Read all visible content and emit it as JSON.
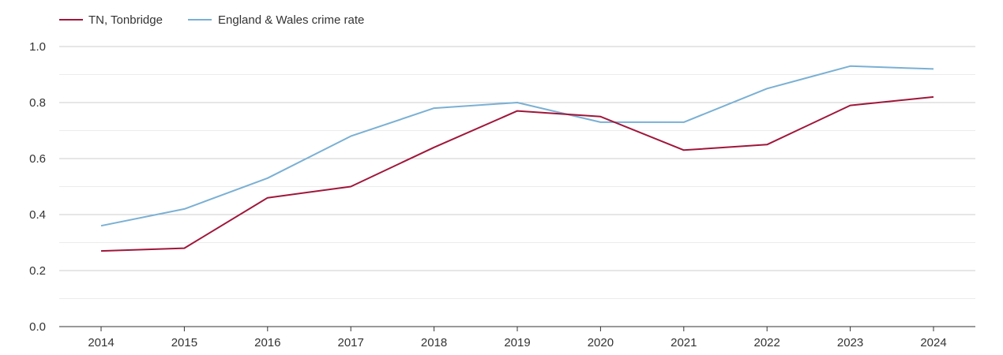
{
  "chart_data": {
    "type": "line",
    "title": "",
    "xlabel": "",
    "ylabel": "",
    "categories": [
      "2014",
      "2015",
      "2016",
      "2017",
      "2018",
      "2019",
      "2020",
      "2021",
      "2022",
      "2023",
      "2024"
    ],
    "ylim": [
      0,
      1.0
    ],
    "yticks": [
      "0.0",
      "0.2",
      "0.4",
      "0.6",
      "0.8",
      "1.0"
    ],
    "grid": true,
    "legend_position": "top-left",
    "series": [
      {
        "name": "TN, Tonbridge",
        "color": "#a0163a",
        "values": [
          0.27,
          0.28,
          0.46,
          0.5,
          0.64,
          0.77,
          0.75,
          0.63,
          0.65,
          0.79,
          0.82
        ]
      },
      {
        "name": "England & Wales crime rate",
        "color": "#7ab0d4",
        "values": [
          0.36,
          0.42,
          0.53,
          0.68,
          0.78,
          0.8,
          0.73,
          0.73,
          0.85,
          0.93,
          0.92
        ]
      }
    ]
  }
}
